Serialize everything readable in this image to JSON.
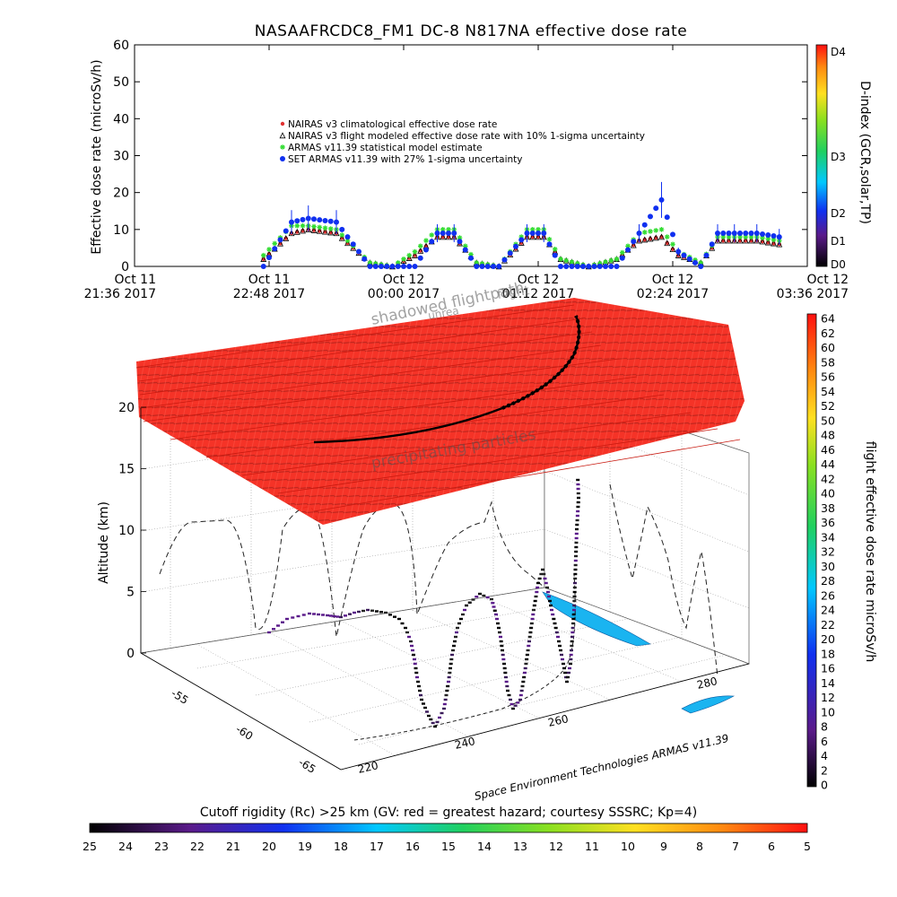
{
  "top_chart": {
    "title": "NASAAFRCDC8_FM1 DC-8   N817NA effective dose rate",
    "ylabel": "Effective dose rate (microSv/h)",
    "right_label": "D-index (GCR,solar,TP)",
    "right_ticks": [
      "D4",
      "D3",
      "D2",
      "D1",
      "D0"
    ],
    "y_ticks": [
      "0",
      "10",
      "20",
      "30",
      "40",
      "50",
      "60"
    ],
    "x_ticks": [
      {
        "top": "Oct 11",
        "bottom": "21:36 2017"
      },
      {
        "top": "Oct 11",
        "bottom": "22:48 2017"
      },
      {
        "top": "Oct 12",
        "bottom": "00:00 2017"
      },
      {
        "top": "Oct 12",
        "bottom": "01:12 2017"
      },
      {
        "top": "Oct 12",
        "bottom": "02:24 2017"
      },
      {
        "top": "Oct 12",
        "bottom": "03:36 2017"
      }
    ],
    "legend": [
      "NAIRAS v3 climatological effective dose rate",
      "NAIRAS v3 flight modeled effective dose rate with 10% 1-sigma uncertainty",
      "ARMAS v11.39 statistical model estimate",
      "SET ARMAS v11.39 with 27% 1-sigma uncertainty"
    ],
    "colors": {
      "nairas_clim": "#e03030",
      "nairas_flight": "#000000",
      "armas_stat": "#33dd33",
      "set_armas": "#1030f0"
    }
  },
  "chart_data": {
    "type": "scatter",
    "title": "NASAAFRCDC8_FM1 DC-8   N817NA effective dose rate",
    "ylabel": "Effective dose rate (microSv/h)",
    "xlim": [
      "Oct 11 21:36 2017",
      "Oct 12 03:36 2017"
    ],
    "ylim": [
      0,
      60
    ],
    "x_unit": "hours after Oct 11 21:36 2017",
    "x": [
      1.15,
      1.4,
      1.55,
      1.8,
      2.1,
      2.3,
      2.5,
      2.7,
      2.85,
      3.05,
      3.25,
      3.5,
      3.65,
      3.8,
      4.05,
      4.3,
      4.5,
      4.7,
      4.85,
      5.05,
      5.2,
      5.35,
      5.55,
      5.75
    ],
    "series": [
      {
        "name": "NAIRAS v3 climatological effective dose rate",
        "values": [
          2,
          9,
          10,
          9,
          1,
          0,
          3,
          8,
          8,
          1,
          0,
          8,
          8,
          2,
          0,
          2,
          7,
          8,
          3,
          1,
          7,
          7,
          7,
          6
        ]
      },
      {
        "name": "NAIRAS v3 flight modeled effective dose rate with 10% 1-sigma uncertainty",
        "values": [
          2,
          9,
          10,
          9,
          1,
          0,
          3,
          8,
          8,
          1,
          0,
          8,
          8,
          2,
          0,
          2,
          7,
          8,
          3,
          1,
          7,
          7,
          7,
          6
        ]
      },
      {
        "name": "ARMAS v11.39 statistical model estimate",
        "values": [
          3,
          11,
          11,
          10,
          1,
          0,
          4,
          10,
          10,
          1,
          0,
          10,
          10,
          2,
          0,
          2,
          9,
          10,
          4,
          1,
          8,
          8,
          8,
          7
        ]
      },
      {
        "name": "SET ARMAS v11.39 with 27% 1-sigma uncertainty",
        "values": [
          0,
          12,
          13,
          12,
          0,
          0,
          0,
          9,
          9,
          0,
          0,
          9,
          9,
          0,
          0,
          0,
          9,
          18,
          4,
          0,
          9,
          9,
          9,
          8
        ]
      }
    ]
  },
  "scene3d": {
    "ylabel": "Altitude (km)",
    "z_ticks": [
      "0",
      "5",
      "10",
      "15",
      "20"
    ],
    "lat_ticks": [
      "-55",
      "-60",
      "-65"
    ],
    "lon_ticks": [
      "220",
      "240",
      "260",
      "280"
    ],
    "ghost_text": [
      "shadowed flightpath",
      "unrea",
      "flight",
      "precipitating particles"
    ],
    "credit": "Space Environment Technologies ARMAS v11.39",
    "right_colorbar": {
      "label": "flight effective dose rate microSv/h",
      "ticks": [
        "64",
        "62",
        "60",
        "58",
        "56",
        "54",
        "52",
        "50",
        "48",
        "46",
        "44",
        "42",
        "40",
        "38",
        "36",
        "34",
        "32",
        "30",
        "28",
        "26",
        "24",
        "22",
        "20",
        "18",
        "16",
        "14",
        "12",
        "10",
        "8",
        "6",
        "4",
        "2",
        "0"
      ]
    },
    "bottom_colorbar": {
      "label": "Cutoff rigidity (Rc) >25 km (GV: red = greatest hazard; courtesy SSSRC; Kp=4)",
      "ticks": [
        "25",
        "24",
        "23",
        "22",
        "21",
        "20",
        "19",
        "18",
        "17",
        "16",
        "15",
        "14",
        "13",
        "12",
        "11",
        "10",
        "9",
        "8",
        "7",
        "6",
        "5"
      ]
    }
  }
}
